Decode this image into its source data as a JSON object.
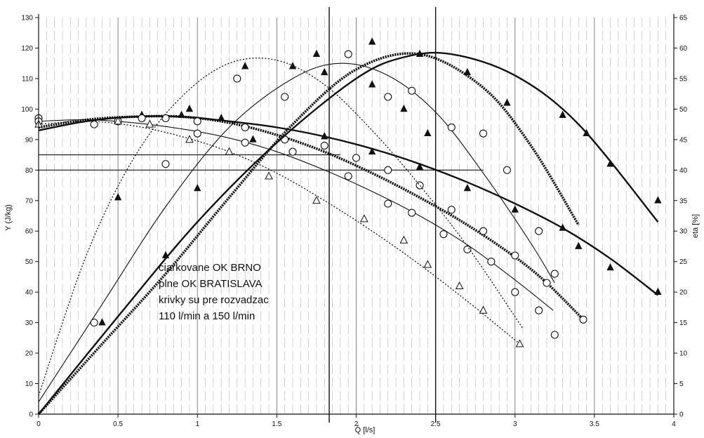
{
  "chart_data": {
    "type": "line",
    "xlabel": "Q̊ [l/s]",
    "ylabel": "Y (J/kg)",
    "y2label": "eta [%]",
    "xlim": [
      0,
      4
    ],
    "ylim": [
      0,
      130
    ],
    "y2lim": [
      0,
      65
    ],
    "x_ticks": [
      0,
      0.5,
      1,
      1.5,
      2,
      2.5,
      3,
      3.5,
      4
    ],
    "x_tick_labels": [
      "0",
      "0.5",
      "1",
      "1.5",
      "2",
      "2.5",
      "3",
      "3.5",
      "4"
    ],
    "y_ticks": [
      0,
      10,
      20,
      30,
      40,
      50,
      60,
      70,
      80,
      90,
      100,
      110,
      120,
      130
    ],
    "y_tick_labels": [
      "0",
      "10",
      "20",
      "30",
      "40",
      "50",
      "60",
      "70",
      "80",
      "90",
      "100",
      "110",
      "120",
      "130"
    ],
    "y2_ticks": [
      0,
      5,
      10,
      15,
      20,
      25,
      30,
      35,
      40,
      45,
      50,
      55,
      60,
      65
    ],
    "y2_tick_labels": [
      "0",
      "5",
      "10",
      "15",
      "20",
      "25",
      "30",
      "35",
      "40",
      "45",
      "50",
      "55",
      "60",
      "65"
    ],
    "annotation_lines": [
      "ciarkovane OK BRNO",
      "plne OK BRATISLAVA",
      "krivky su pre rozvadzac",
      "110 l/min a 150 l/min"
    ],
    "grid_x_minor": true,
    "vertical_lines_x": [
      1.83,
      2.5
    ],
    "horizontal_lines": [
      {
        "y": 85,
        "x_from": 0.0,
        "x_to": 1.9
      },
      {
        "y": 80,
        "x_from": 0.0,
        "x_to": 2.8
      }
    ],
    "series": [
      {
        "style": "solid-thick",
        "marker": "triangle-filled",
        "axis": "y",
        "x": [
          0.0,
          0.3,
          0.6,
          0.9,
          1.2,
          1.5,
          1.8,
          2.1,
          2.4,
          2.7,
          3.0,
          3.3,
          3.6,
          3.9
        ],
        "y": [
          93,
          96,
          97.5,
          97.5,
          96,
          94,
          91,
          87,
          82,
          76,
          69,
          61,
          51,
          39
        ],
        "points_x": [
          0.0,
          0.5,
          0.65,
          0.9,
          1.15,
          1.8,
          2.1,
          2.4,
          2.7,
          3.0,
          3.3,
          3.4,
          3.6,
          3.9
        ],
        "points_y": [
          96,
          96,
          98,
          98,
          97,
          91,
          86,
          81,
          74,
          67,
          61,
          55,
          48,
          40
        ]
      },
      {
        "style": "solid-beaded",
        "marker": "circle-open",
        "axis": "y",
        "x": [
          0.0,
          0.3,
          0.6,
          0.9,
          1.2,
          1.5,
          1.8,
          2.1,
          2.4,
          2.7,
          3.0,
          3.2,
          3.43
        ],
        "y": [
          94,
          96.5,
          97.5,
          97.5,
          95.5,
          91.5,
          86,
          79,
          71,
          62,
          51.5,
          43,
          31
        ],
        "points_x": [
          0.0,
          0.35,
          0.65,
          1.0,
          1.3,
          1.55,
          1.8,
          2.0,
          2.2,
          2.4,
          2.6,
          2.8,
          3.0,
          3.2,
          3.43
        ],
        "points_y": [
          97,
          95,
          97,
          96,
          94,
          90,
          88,
          84,
          80,
          75,
          67,
          60,
          52,
          43,
          31
        ]
      },
      {
        "style": "solid-thin",
        "marker": "circle-open",
        "axis": "y",
        "x": [
          0.0,
          0.3,
          0.6,
          0.9,
          1.2,
          1.5,
          1.8,
          2.1,
          2.4,
          2.7,
          3.0,
          3.24
        ],
        "y": [
          96,
          96.5,
          95.5,
          93.5,
          90.5,
          86,
          80,
          73,
          65,
          55.5,
          44,
          34
        ],
        "points_x": [
          0.0,
          0.5,
          0.8,
          1.0,
          1.3,
          1.6,
          1.95,
          2.2,
          2.35,
          2.55,
          2.7,
          2.85,
          3.0,
          3.15,
          3.25
        ],
        "points_y": [
          96,
          96,
          97,
          92,
          89,
          86,
          78,
          69,
          66,
          59,
          54,
          50,
          40,
          34,
          26
        ]
      },
      {
        "style": "dotted",
        "marker": "triangle-open",
        "axis": "y",
        "x": [
          0.0,
          0.3,
          0.6,
          0.9,
          1.2,
          1.5,
          1.8,
          2.1,
          2.4,
          2.7,
          3.03
        ],
        "y": [
          95,
          96,
          94.5,
          91,
          86,
          79,
          70,
          60,
          49,
          37,
          23
        ],
        "points_x": [
          0.0,
          0.5,
          0.7,
          0.95,
          1.2,
          1.45,
          1.75,
          2.05,
          2.3,
          2.45,
          2.65,
          2.8,
          3.03
        ],
        "points_y": [
          95,
          96,
          95,
          90,
          86,
          78,
          70,
          64,
          57,
          49,
          42,
          34,
          23
        ]
      },
      {
        "style": "solid-beaded",
        "marker": "triangle-filled",
        "axis": "y2",
        "x": [
          0.0,
          0.4,
          0.8,
          1.2,
          1.6,
          2.0,
          2.4,
          2.8,
          3.1,
          3.4
        ],
        "y": [
          0,
          11.5,
          23,
          35.5,
          47.5,
          56.5,
          59,
          53.5,
          44,
          31
        ],
        "points_x": [
          0.4,
          0.8,
          1.0,
          1.35,
          1.75,
          2.1,
          2.4,
          2.7,
          2.95,
          3.3,
          3.45,
          3.6,
          3.9
        ],
        "points_y": [
          15,
          26,
          37,
          45,
          59,
          61,
          59,
          56,
          51,
          49,
          46,
          41,
          35
        ]
      },
      {
        "style": "solid-thick",
        "marker": "none",
        "axis": "y2",
        "x": [
          0.0,
          0.5,
          1.0,
          1.5,
          2.0,
          2.3,
          2.6,
          3.0,
          3.4,
          3.9
        ],
        "y": [
          0,
          16,
          31.5,
          44.5,
          55,
          58.5,
          59,
          55.5,
          47.5,
          31.5
        ],
        "points_x": [],
        "points_y": []
      },
      {
        "style": "solid-thin",
        "marker": "circle-open",
        "axis": "y2",
        "x": [
          0.0,
          0.4,
          0.8,
          1.2,
          1.6,
          1.9,
          2.2,
          2.5,
          2.8,
          3.1,
          3.25
        ],
        "y": [
          2,
          18,
          34,
          47,
          55,
          57.5,
          55.5,
          49.5,
          39.5,
          28,
          21.5
        ],
        "points_x": [
          0.35,
          0.8,
          1.25,
          1.55,
          1.95,
          2.2,
          2.35,
          2.6,
          2.8,
          2.95,
          3.15,
          3.25
        ],
        "points_y": [
          15,
          41,
          55,
          52,
          59,
          52,
          53,
          47,
          46,
          40,
          30,
          23
        ]
      },
      {
        "style": "dotted",
        "marker": "triangle-filled",
        "axis": "y2",
        "x": [
          0.0,
          0.3,
          0.6,
          0.9,
          1.2,
          1.5,
          1.8,
          2.1,
          2.4,
          2.7,
          3.05
        ],
        "y": [
          3,
          26,
          42,
          52,
          57.5,
          58,
          54,
          46.5,
          37.5,
          27.5,
          14
        ],
        "points_x": [
          0.5,
          0.95,
          1.3,
          1.6,
          1.8,
          2.1,
          2.3,
          2.45
        ],
        "points_y": [
          35.5,
          50,
          57,
          57,
          56,
          54,
          50,
          46
        ]
      }
    ]
  }
}
